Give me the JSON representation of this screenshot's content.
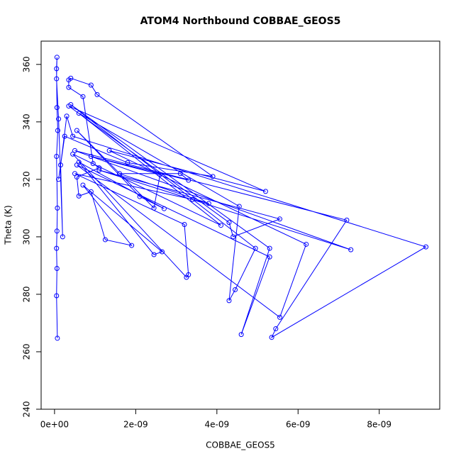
{
  "chart_data": {
    "type": "line",
    "markers": true,
    "title": "ATOM4 Northbound COBBAE_GEOS5",
    "x_label": "COBBAE_GEOS5",
    "y_label": "Theta (K)",
    "xlim": [
      -3.3e-10,
      9.49e-09
    ],
    "ylim": [
      240,
      368.1
    ],
    "xticks": [
      {
        "value": 0,
        "label": "0e+00"
      },
      {
        "value": 2e-09,
        "label": "2e-09"
      },
      {
        "value": 4e-09,
        "label": "4e-09"
      },
      {
        "value": 6e-09,
        "label": "6e-09"
      },
      {
        "value": 8e-09,
        "label": "8e-09"
      }
    ],
    "yticks": [
      240,
      260,
      280,
      300,
      320,
      340,
      360
    ],
    "series": [
      {
        "color": "#0000ff",
        "x": [
          7e-11,
          5e-11,
          6e-11,
          5e-11,
          6e-11,
          7e-11,
          5e-11,
          8e-11,
          6e-11,
          5e-11,
          6e-11,
          5e-11,
          1e-10,
          2e-10,
          1.5e-10,
          3e-10,
          4.5e-10,
          9.15e-09,
          5.35e-09,
          5.45e-09,
          7.2e-09,
          5e-10,
          7.3e-09,
          1.1e-09,
          5.55e-09,
          4.4e-09,
          4.3e-09,
          3.5e-10,
          5.2e-09,
          1.35e-09,
          6.2e-09,
          5.55e-09,
          5.5e-10,
          5.3e-09,
          4.6e-09,
          5.3e-09,
          4e-10,
          4.95e-09,
          4.45e-09,
          4.3e-09,
          4.55e-09,
          6e-10,
          4.1e-09,
          4.5e-10,
          3.25e-09,
          3.3e-09,
          3.2e-09,
          5e-10,
          3.4e-09,
          3.8e-09,
          1.6e-09,
          3.1e-09,
          3.3e-09,
          9e-10,
          2.6e-09,
          2.45e-09,
          5.5e-10,
          2.1e-09,
          2.7e-09,
          6e-10,
          2.45e-09,
          2.65e-09,
          7e-10,
          1.9e-09,
          1.25e-09,
          9e-10,
          6e-10,
          5.5e-10,
          1.1e-09,
          9.5e-10,
          7e-10,
          3.5e-10,
          3.5e-10,
          4e-10,
          9e-10,
          1.05e-09,
          3.9e-09,
          1.8e-09,
          2.5e-10,
          1e-10
        ],
        "values": [
          264.7,
          279.5,
          289,
          296,
          302,
          310,
          328,
          337,
          345,
          358.5,
          362.5,
          355,
          341,
          300,
          325,
          342,
          335,
          296.5,
          265,
          268,
          305.8,
          330,
          295.5,
          323.2,
          306.2,
          300,
          305,
          345.5,
          315.8,
          330,
          297.4,
          272,
          325,
          293,
          266,
          296,
          346,
          296,
          281.6,
          277.8,
          310.6,
          343,
          304,
          328.8,
          285.9,
          286.8,
          304.3,
          322,
          313,
          311.6,
          322,
          322,
          319.7,
          328,
          321.7,
          310,
          337,
          314,
          309.8,
          326,
          293.8,
          294.8,
          318,
          297,
          299,
          315.7,
          314.2,
          320.8,
          324,
          325.5,
          348.8,
          352,
          354.6,
          355.2,
          352.8,
          349.5,
          321,
          325.8,
          335,
          320
        ]
      }
    ]
  }
}
